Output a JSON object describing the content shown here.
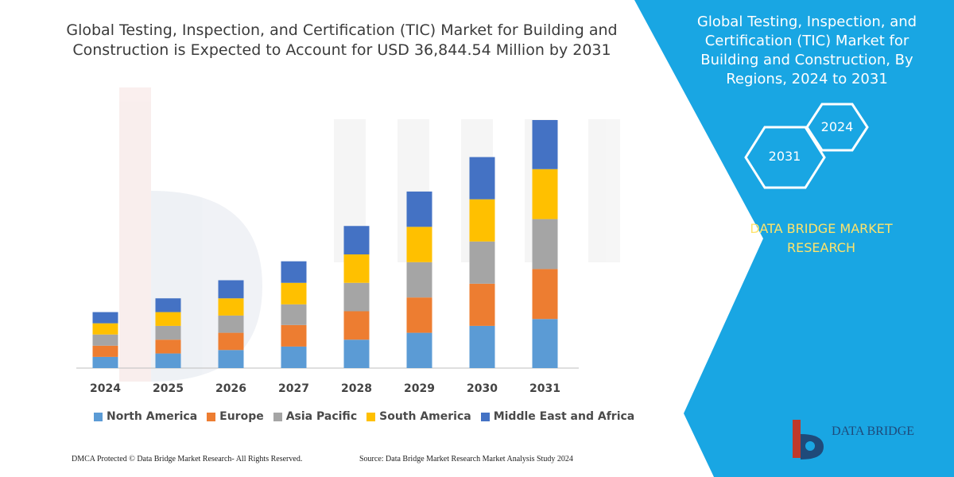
{
  "header": {
    "title_line1": "Global Testing, Inspection, and Certification (TIC) Market for Building and",
    "title_line2": "Construction is Expected to Account for USD 36,844.54 Million by 2031"
  },
  "sidebar": {
    "title_line1": "Global Testing, Inspection, and",
    "title_line2": "Certification (TIC) Market for",
    "title_line3": "Building and Construction, By",
    "title_line4": "Regions, 2024 to 2031",
    "hex_top": "2024",
    "hex_bottom": "2031",
    "brand_line1": "DATA BRIDGE MARKET",
    "brand_line2": "RESEARCH",
    "background_color": "#19a6e3",
    "brand_color": "#ffe36a"
  },
  "footer": {
    "left": "DMCA Protected © Data Bridge Market Research-  All Rights Reserved.",
    "right": "Source: Data Bridge Market Research  Market Analysis Study 2024",
    "logo_text": "DATA BRIDGE"
  },
  "chart_data": {
    "type": "bar",
    "stacked": true,
    "categories": [
      "2024",
      "2025",
      "2026",
      "2027",
      "2028",
      "2029",
      "2030",
      "2031"
    ],
    "series": [
      {
        "name": "North America",
        "color": "#5b9bd5",
        "values": [
          13,
          17,
          21,
          25,
          33,
          41,
          49,
          57
        ]
      },
      {
        "name": "Europe",
        "color": "#ed7d31",
        "values": [
          13,
          16,
          20,
          25,
          33,
          41,
          49,
          58
        ]
      },
      {
        "name": "Asia Pacific",
        "color": "#a5a5a5",
        "values": [
          13,
          16,
          20,
          24,
          33,
          41,
          49,
          58
        ]
      },
      {
        "name": "South America",
        "color": "#ffc000",
        "values": [
          13,
          16,
          20,
          25,
          33,
          41,
          49,
          58
        ]
      },
      {
        "name": "Middle East and Africa",
        "color": "#4472c4",
        "values": [
          13,
          16,
          21,
          25,
          33,
          41,
          49,
          57
        ]
      }
    ],
    "legend_position": "bottom",
    "grid": false
  }
}
